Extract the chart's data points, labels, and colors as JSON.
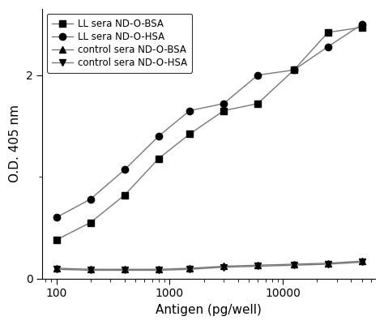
{
  "x": [
    100,
    200,
    400,
    800,
    1500,
    3000,
    6000,
    12500,
    25000,
    50000
  ],
  "ll_bsa": [
    0.38,
    0.55,
    0.82,
    1.18,
    1.42,
    1.65,
    1.72,
    2.05,
    2.42,
    2.47
  ],
  "ll_hsa": [
    0.6,
    0.78,
    1.07,
    1.4,
    1.65,
    1.72,
    2.0,
    2.05,
    2.28,
    2.5
  ],
  "ctrl_bsa": [
    0.1,
    0.09,
    0.09,
    0.09,
    0.1,
    0.12,
    0.13,
    0.14,
    0.15,
    0.17
  ],
  "ctrl_hsa": [
    0.09,
    0.08,
    0.08,
    0.08,
    0.09,
    0.11,
    0.12,
    0.13,
    0.14,
    0.16
  ],
  "xlabel": "Antigen (pg/well)",
  "ylabel": "O.D. 405 nm",
  "ylim": [
    0,
    2.65
  ],
  "xlim": [
    75,
    65000
  ],
  "yticks": [
    0,
    2
  ],
  "xticks": [
    100,
    1000,
    10000
  ],
  "xticklabels": [
    "100",
    "1000",
    "10000"
  ],
  "legend_labels": [
    "LL sera ND-O-BSA",
    "LL sera ND-O-HSA",
    "control sera ND-O-BSA",
    "control sera ND-O-HSA"
  ],
  "line_color": "#777777",
  "markers": [
    "s",
    "o",
    "^",
    "v"
  ],
  "markersize": 6,
  "linewidth": 1.0
}
